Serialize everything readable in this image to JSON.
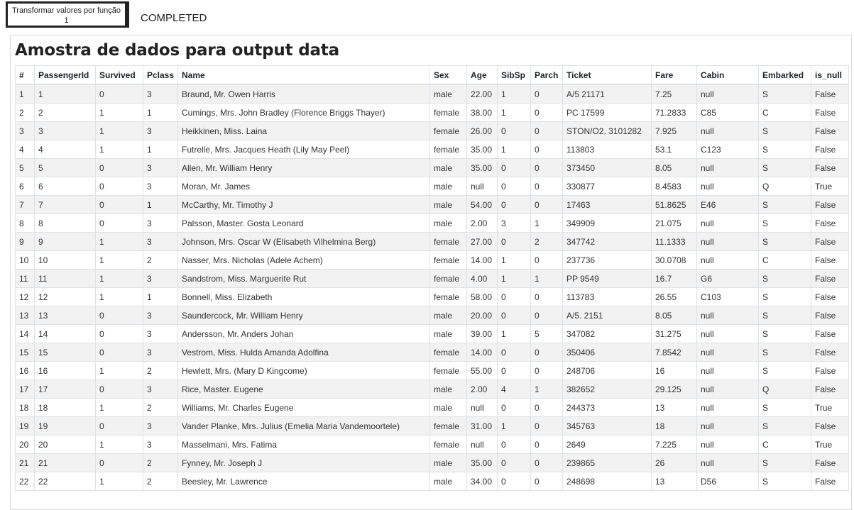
{
  "task": {
    "label": "Transformar valores por função",
    "count": "1"
  },
  "status": "COMPLETED",
  "panel": {
    "title": "Amostra de dados para output data"
  },
  "table": {
    "columns": [
      "#",
      "PassengerId",
      "Survived",
      "Pclass",
      "Name",
      "Sex",
      "Age",
      "SibSp",
      "Parch",
      "Ticket",
      "Fare",
      "Cabin",
      "Embarked",
      "is_null"
    ],
    "rows": [
      [
        "1",
        "1",
        "0",
        "3",
        "Braund, Mr. Owen Harris",
        "male",
        "22.00",
        "1",
        "0",
        "A/5 21171",
        "7.25",
        "null",
        "S",
        "False"
      ],
      [
        "2",
        "2",
        "1",
        "1",
        "Cumings, Mrs. John Bradley (Florence Briggs Thayer)",
        "female",
        "38.00",
        "1",
        "0",
        "PC 17599",
        "71.2833",
        "C85",
        "C",
        "False"
      ],
      [
        "3",
        "3",
        "1",
        "3",
        "Heikkinen, Miss. Laina",
        "female",
        "26.00",
        "0",
        "0",
        "STON/O2. 3101282",
        "7.925",
        "null",
        "S",
        "False"
      ],
      [
        "4",
        "4",
        "1",
        "1",
        "Futrelle, Mrs. Jacques Heath (Lily May Peel)",
        "female",
        "35.00",
        "1",
        "0",
        "113803",
        "53.1",
        "C123",
        "S",
        "False"
      ],
      [
        "5",
        "5",
        "0",
        "3",
        "Allen, Mr. William Henry",
        "male",
        "35.00",
        "0",
        "0",
        "373450",
        "8.05",
        "null",
        "S",
        "False"
      ],
      [
        "6",
        "6",
        "0",
        "3",
        "Moran, Mr. James",
        "male",
        "null",
        "0",
        "0",
        "330877",
        "8.4583",
        "null",
        "Q",
        "True"
      ],
      [
        "7",
        "7",
        "0",
        "1",
        "McCarthy, Mr. Timothy J",
        "male",
        "54.00",
        "0",
        "0",
        "17463",
        "51.8625",
        "E46",
        "S",
        "False"
      ],
      [
        "8",
        "8",
        "0",
        "3",
        "Palsson, Master. Gosta Leonard",
        "male",
        "2.00",
        "3",
        "1",
        "349909",
        "21.075",
        "null",
        "S",
        "False"
      ],
      [
        "9",
        "9",
        "1",
        "3",
        "Johnson, Mrs. Oscar W (Elisabeth Vilhelmina Berg)",
        "female",
        "27.00",
        "0",
        "2",
        "347742",
        "11.1333",
        "null",
        "S",
        "False"
      ],
      [
        "10",
        "10",
        "1",
        "2",
        "Nasser, Mrs. Nicholas (Adele Achem)",
        "female",
        "14.00",
        "1",
        "0",
        "237736",
        "30.0708",
        "null",
        "C",
        "False"
      ],
      [
        "11",
        "11",
        "1",
        "3",
        "Sandstrom, Miss. Marguerite Rut",
        "female",
        "4.00",
        "1",
        "1",
        "PP 9549",
        "16.7",
        "G6",
        "S",
        "False"
      ],
      [
        "12",
        "12",
        "1",
        "1",
        "Bonnell, Miss. Elizabeth",
        "female",
        "58.00",
        "0",
        "0",
        "113783",
        "26.55",
        "C103",
        "S",
        "False"
      ],
      [
        "13",
        "13",
        "0",
        "3",
        "Saundercock, Mr. William Henry",
        "male",
        "20.00",
        "0",
        "0",
        "A/5. 2151",
        "8.05",
        "null",
        "S",
        "False"
      ],
      [
        "14",
        "14",
        "0",
        "3",
        "Andersson, Mr. Anders Johan",
        "male",
        "39.00",
        "1",
        "5",
        "347082",
        "31.275",
        "null",
        "S",
        "False"
      ],
      [
        "15",
        "15",
        "0",
        "3",
        "Vestrom, Miss. Hulda Amanda Adolfina",
        "female",
        "14.00",
        "0",
        "0",
        "350406",
        "7.8542",
        "null",
        "S",
        "False"
      ],
      [
        "16",
        "16",
        "1",
        "2",
        "Hewlett, Mrs. (Mary D Kingcome)",
        "female",
        "55.00",
        "0",
        "0",
        "248706",
        "16",
        "null",
        "S",
        "False"
      ],
      [
        "17",
        "17",
        "0",
        "3",
        "Rice, Master. Eugene",
        "male",
        "2.00",
        "4",
        "1",
        "382652",
        "29.125",
        "null",
        "Q",
        "False"
      ],
      [
        "18",
        "18",
        "1",
        "2",
        "Williams, Mr. Charles Eugene",
        "male",
        "null",
        "0",
        "0",
        "244373",
        "13",
        "null",
        "S",
        "True"
      ],
      [
        "19",
        "19",
        "0",
        "3",
        "Vander Planke, Mrs. Julius (Emelia Maria Vandemoortele)",
        "female",
        "31.00",
        "1",
        "0",
        "345763",
        "18",
        "null",
        "S",
        "False"
      ],
      [
        "20",
        "20",
        "1",
        "3",
        "Masselmani, Mrs. Fatima",
        "female",
        "null",
        "0",
        "0",
        "2649",
        "7.225",
        "null",
        "C",
        "True"
      ],
      [
        "21",
        "21",
        "0",
        "2",
        "Fynney, Mr. Joseph J",
        "male",
        "35.00",
        "0",
        "0",
        "239865",
        "26",
        "null",
        "S",
        "False"
      ],
      [
        "22",
        "22",
        "1",
        "2",
        "Beesley, Mr. Lawrence",
        "male",
        "34.00",
        "0",
        "0",
        "248698",
        "13",
        "D56",
        "S",
        "False"
      ]
    ]
  }
}
